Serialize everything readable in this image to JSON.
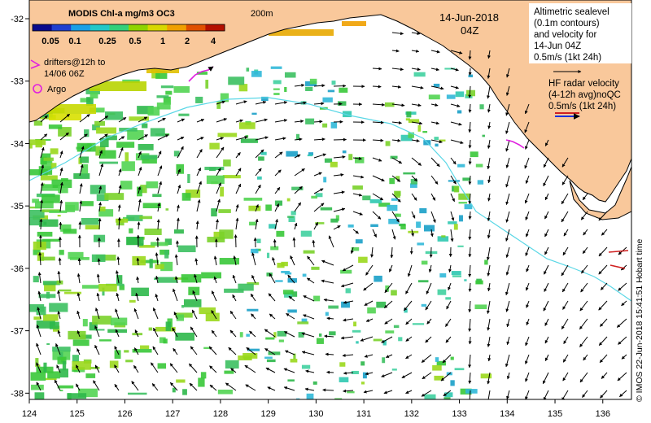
{
  "colorbar": {
    "title": "MODIS Chl-a mg/m3 OC3",
    "tick_labels": [
      "0.05",
      "0.1",
      "0.25",
      "0.5",
      "1",
      "2",
      "4"
    ],
    "colors": [
      "#0a0a8c",
      "#1f3fd0",
      "#1aa0e6",
      "#22c8c8",
      "#33d07a",
      "#8fd400",
      "#d8d800",
      "#f0a000",
      "#e05000",
      "#b41000"
    ]
  },
  "isobath_label": "200m",
  "date": "14-Jun-2018",
  "time": "04Z",
  "legend": {
    "drifters": [
      "drifters@12h to",
      "14/06 06Z"
    ],
    "argo": "Argo",
    "altimetry": [
      "Altimetric sealevel",
      "(0.1m contours)",
      "and velocity for",
      "14-Jun 04Z",
      "0.5m/s (1kt 24h)"
    ],
    "hf_radar": [
      "HF radar velocity",
      "(4-12h avg)noQC",
      "0.5m/s (1kt 24h)"
    ]
  },
  "axes": {
    "x_ticks": [
      "124",
      "125",
      "126",
      "127",
      "128",
      "129",
      "130",
      "131",
      "132",
      "133",
      "134",
      "135",
      "136"
    ],
    "y_ticks": [
      "-32",
      "-33",
      "-34",
      "-35",
      "-36",
      "-37",
      "-38"
    ],
    "lon_range": [
      124,
      136.6
    ],
    "lat_range": [
      -38.1,
      -31.7
    ]
  },
  "credit": "© IMOS 22-Jun-2018 15:41:51 Hobart time",
  "map_colors": {
    "land": "#f9c89b",
    "ocean": "#ffffff",
    "isobath": "#5ad7e6",
    "arrows": "#000000",
    "drifters": "#e020e0",
    "hf_radar_arrows": [
      "#d02020",
      "#1030e0"
    ]
  }
}
